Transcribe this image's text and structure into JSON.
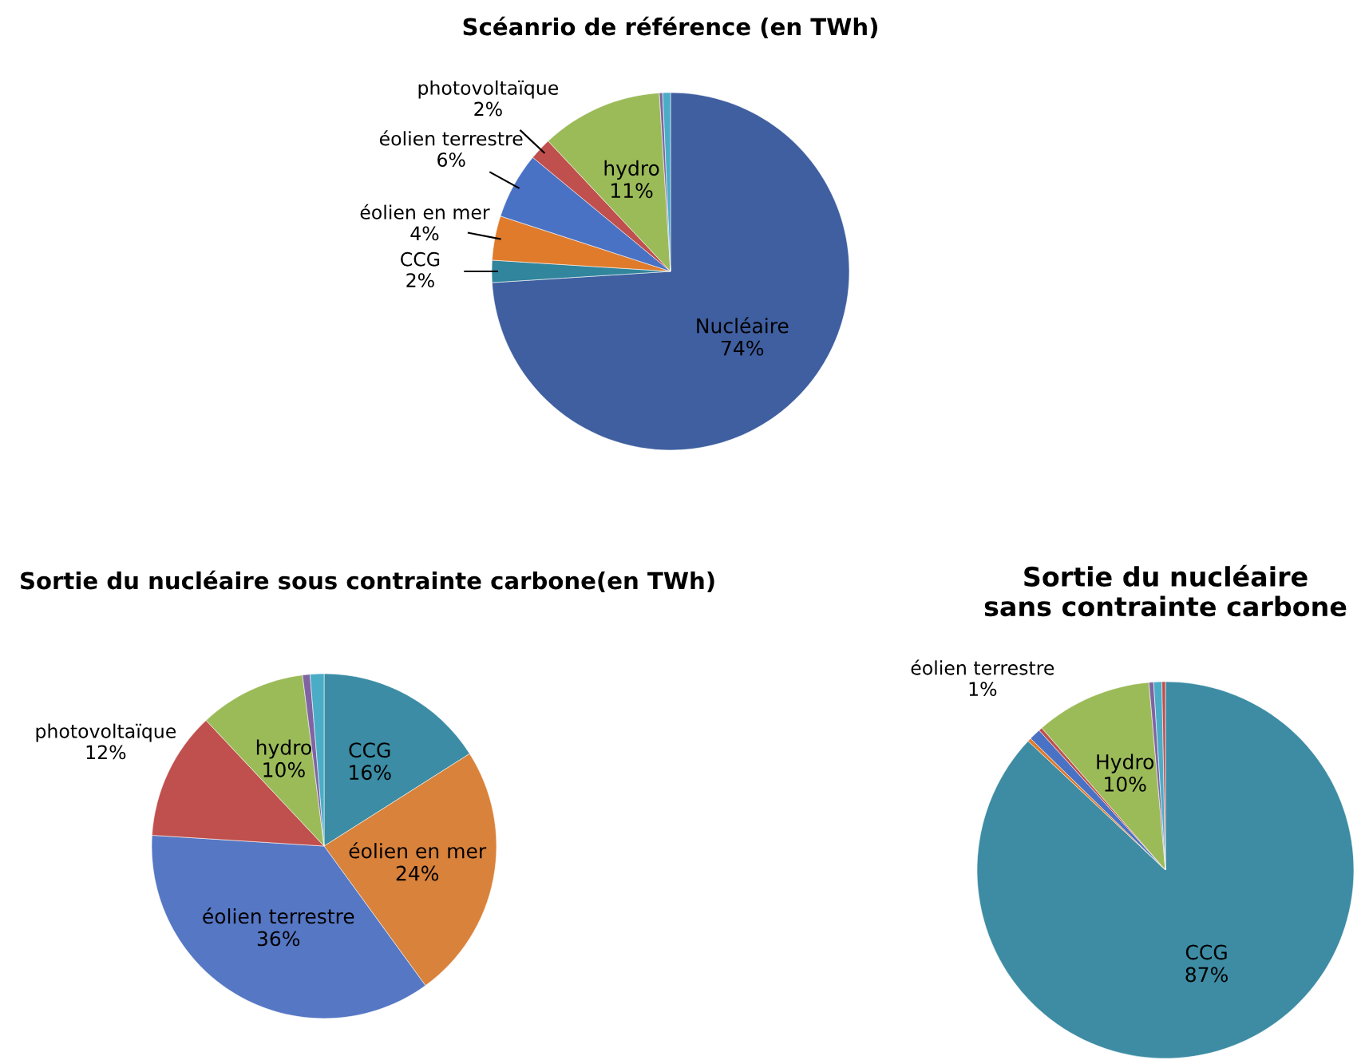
{
  "chart_data": [
    {
      "type": "pie",
      "title": "Scéanrio de référence (en TWh)",
      "categories": [
        "Nucléaire",
        "CCG",
        "éolien en mer",
        "éolien terrestre",
        "photovoltaïque",
        "hydro",
        null,
        null
      ],
      "values": [
        74,
        2,
        4,
        6,
        2,
        11,
        0.3,
        0.7
      ],
      "value_labels": [
        "74%",
        "2%",
        "4%",
        "6%",
        "2%",
        "11%",
        null,
        null
      ],
      "colors": [
        "#3f5fa0",
        "#31859c",
        "#e07b2b",
        "#4a72c4",
        "#c0504d",
        "#9bbb59",
        "#8064a2",
        "#4bacc6"
      ]
    },
    {
      "type": "pie",
      "title": "Sortie du nucléaire sous contrainte carbone(en TWh)",
      "categories": [
        "CCG",
        "éolien en mer",
        "éolien terrestre",
        "photovoltaïque",
        "hydro",
        null,
        null
      ],
      "values": [
        16,
        24,
        36,
        12,
        10,
        0.7,
        1.3
      ],
      "value_labels": [
        "16%",
        "24%",
        "36%",
        "12%",
        "10%",
        null,
        null
      ],
      "colors": [
        "#3b8ca4",
        "#d9823b",
        "#5577c4",
        "#c0504d",
        "#9bbb59",
        "#8064a2",
        "#4bacc6"
      ]
    },
    {
      "type": "pie",
      "title": "Sortie du nucléaire sans contrainte carbone",
      "categories": [
        "CCG",
        null,
        "éolien terrestre",
        null,
        "Hydro",
        null,
        null,
        null
      ],
      "values": [
        87,
        0.3,
        1,
        0.3,
        10,
        0.4,
        0.7,
        0.3
      ],
      "value_labels": [
        "87%",
        null,
        "1%",
        null,
        "10%",
        null,
        null,
        null
      ],
      "colors": [
        "#3d8ca4",
        "#e07b2b",
        "#4a72c4",
        "#c0504d",
        "#9bbb59",
        "#8064a2",
        "#4bacc6",
        "#c0504d"
      ]
    }
  ]
}
